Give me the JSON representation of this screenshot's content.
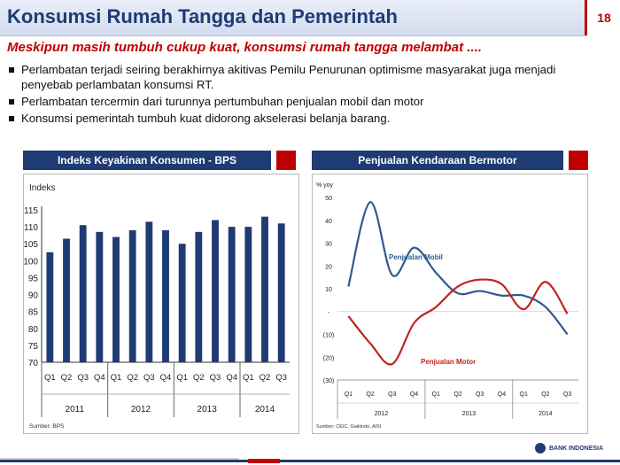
{
  "slide": {
    "title": "Konsumsi Rumah Tangga dan Pemerintah",
    "page_number": "18",
    "subtitle": "Meskipun masih tumbuh cukup kuat, konsumsi rumah tangga melambat ....",
    "bullets": [
      "Perlambatan terjadi seiring berakhirnya akitivas Pemilu Penurunan optimisme masyarakat juga menjadi penyebab perlambatan konsumsi RT.",
      "Perlambatan tercermin dari turunnya pertumbuhan penjualan mobil dan motor",
      "Konsumsi pemerintah tumbuh kuat didorong akselerasi belanja barang."
    ],
    "logo_text": "BANK INDONESIA"
  },
  "colors": {
    "navy": "#1f3b73",
    "red": "#c00000",
    "bar": "#1f3b73",
    "mobil": "#2e5b8e",
    "motor": "#c0231f"
  },
  "chart_data": [
    {
      "type": "bar",
      "title": "Indeks Keyakinan Konsumen - BPS",
      "ylabel": "Indeks",
      "ylim": [
        70,
        115
      ],
      "yticks": [
        70,
        75,
        80,
        85,
        90,
        95,
        100,
        105,
        110,
        115
      ],
      "quarters": [
        "Q1",
        "Q2",
        "Q3",
        "Q4",
        "Q1",
        "Q2",
        "Q3",
        "Q4",
        "Q1",
        "Q2",
        "Q3",
        "Q4",
        "Q1",
        "Q2",
        "Q3"
      ],
      "years": [
        "2011",
        "2012",
        "2013",
        "2014"
      ],
      "values": [
        102.5,
        106.5,
        110.5,
        108.5,
        107,
        109,
        111.5,
        109,
        105,
        108.5,
        112,
        110,
        110,
        113,
        111
      ],
      "source": "Sumber: BPS"
    },
    {
      "type": "line",
      "title": "Penjualan Kendaraan Bermotor",
      "ylabel": "% yoy",
      "ylim": [
        -30,
        50
      ],
      "yticks": [
        "50",
        "40",
        "30",
        "20",
        "10",
        "-",
        "(10)",
        "(20)",
        "(30)"
      ],
      "quarters": [
        "Q1",
        "Q2",
        "Q3",
        "Q4",
        "Q1",
        "Q2",
        "Q3",
        "Q4",
        "Q1",
        "Q2",
        "Q3"
      ],
      "years": [
        "2012",
        "2013",
        "2014"
      ],
      "series": [
        {
          "name": "Penjualan Mobil",
          "values": [
            11,
            48,
            16,
            28,
            17,
            8,
            9,
            7,
            7,
            2,
            -10
          ]
        },
        {
          "name": "Penjualan Motor",
          "values": [
            -2,
            -14,
            -23,
            -5,
            2,
            11,
            14,
            12,
            1,
            13,
            -1
          ]
        }
      ],
      "source": "Sumber: CEIC, Gaikindo, AISI"
    }
  ]
}
